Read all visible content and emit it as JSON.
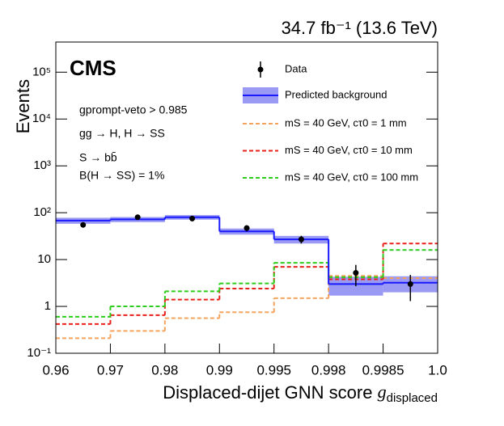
{
  "chart_data": {
    "type": "histogram",
    "title": "34.7 fb⁻¹ (13.6 TeV)",
    "experiment": "CMS",
    "x_label": "Displaced-dijet GNN score",
    "x_label_symbol": "g",
    "x_label_subscript": "displaced",
    "y_label": "Events",
    "annotations": [
      "gprompt-veto > 0.985",
      "gg → H, H → SS",
      "S → bb̄",
      "B(H → SS) = 1%"
    ],
    "bins": [
      0.96,
      0.97,
      0.98,
      0.99,
      0.995,
      0.998,
      0.9985,
      {
        "value": 1,
        "label": "1.0"
      }
    ],
    "log_y": true,
    "ylim": [
      0.1,
      440000
    ],
    "yticks": [
      {
        "value": 0.1,
        "label": "10⁻¹"
      },
      1,
      10,
      {
        "value": 100,
        "label": "10²"
      },
      {
        "value": 1000,
        "label": "10³"
      },
      {
        "value": 10000,
        "label": "10⁴"
      },
      {
        "value": 100000,
        "label": "10⁵"
      }
    ],
    "data": {
      "name": "Data",
      "color": "#000000",
      "values": [
        55,
        80,
        75,
        47,
        27,
        5.2,
        3.0
      ],
      "errors": [
        7,
        9,
        9,
        7,
        5,
        2.5,
        1.7
      ]
    },
    "background": {
      "name": "Predicted background",
      "color": "#1a1aff",
      "band_color": "#9a9af5",
      "values": [
        68,
        72,
        80,
        40,
        27,
        3.0,
        3.2
      ],
      "errors": [
        10,
        9,
        9,
        6,
        5,
        1.3,
        1.2
      ]
    },
    "series": [
      {
        "name": "mS = 40 GeV, cτ0 = 1 mm",
        "color": "#f5a25d",
        "values": [
          0.21,
          0.3,
          0.56,
          0.75,
          1.5,
          4.5,
          4.0
        ]
      },
      {
        "name": "mS = 40 GeV, cτ0 = 10 mm",
        "color": "#e8211b",
        "values": [
          0.42,
          0.65,
          1.4,
          2.4,
          7.0,
          3.8,
          22
        ]
      },
      {
        "name": "mS = 40 GeV, cτ0 = 100 mm",
        "color": "#2ecc1a",
        "values": [
          0.6,
          1.0,
          2.1,
          3.1,
          8.5,
          4.2,
          16
        ]
      }
    ]
  }
}
